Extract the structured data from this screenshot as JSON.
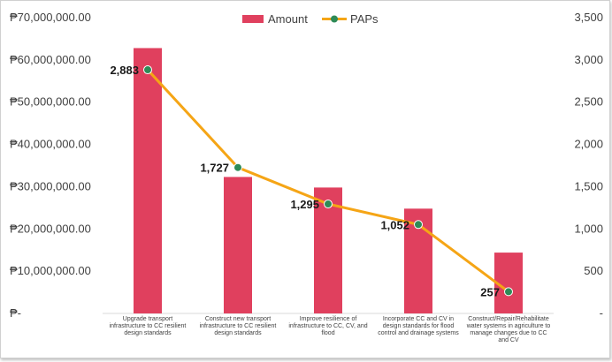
{
  "chart_data": {
    "type": "bar",
    "categories": [
      "Upgrade transport infrastructure to CC resilient design standards",
      "Construct new transport infrastructure to CC resilient design standards",
      "Improve resilience of infrastructure to CC, CV, and flood",
      "Incorporate CC and CV in design standards for flood control and drainage systems",
      "Construct/Repair/Rehabilitate water systems in agriculture to manage changes due to CC and CV"
    ],
    "category_lines": [
      [
        "Upgrade transport",
        "infrastructure to CC resilient",
        "design standards"
      ],
      [
        "Construct new transport",
        "infrastructure to CC resilient",
        "design standards"
      ],
      [
        "Improve resilience of",
        "infrastructure to CC, CV, and",
        "flood"
      ],
      [
        "Incorporate CC and CV in",
        "design standards for flood",
        "control and drainage systems"
      ],
      [
        "Construct/Repair/Rehabilitate",
        "water systems in agriculture to",
        "manage changes due to CC",
        "and CV"
      ]
    ],
    "series": [
      {
        "name": "Amount",
        "type": "bar",
        "axis": "left",
        "color": "#e0405e",
        "values": [
          62800000,
          32300000,
          29800000,
          24800000,
          14400000
        ]
      },
      {
        "name": "PAPs",
        "type": "line",
        "axis": "right",
        "color": "#f5a516",
        "marker_color": "#2e8b57",
        "values": [
          2883,
          1727,
          1295,
          1052,
          257
        ],
        "labels": [
          "2,883",
          "1,727",
          "1,295",
          "1,052",
          "257"
        ]
      }
    ],
    "ylim_left": [
      0,
      70000000
    ],
    "yticks_left": [
      "₱-",
      "₱10,000,000.00",
      "₱20,000,000.00",
      "₱30,000,000.00",
      "₱40,000,000.00",
      "₱50,000,000.00",
      "₱60,000,000.00",
      "₱70,000,000.00"
    ],
    "ylim_right": [
      0,
      3500
    ],
    "yticks_right": [
      "-",
      "500",
      "1,000",
      "1,500",
      "2,000",
      "2,500",
      "3,000",
      "3,500"
    ],
    "legend_position": "top-center",
    "grid": false
  }
}
